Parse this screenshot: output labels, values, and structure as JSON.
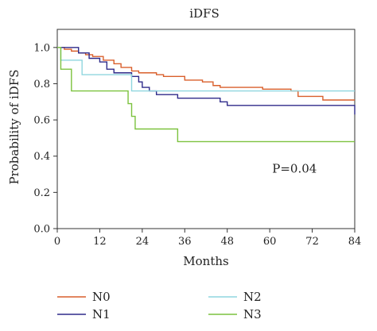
{
  "chart_data": {
    "type": "line",
    "step": true,
    "title": "iDFS",
    "xlabel": "Months",
    "ylabel": "Probability of iDFS",
    "xlim": [
      0,
      84
    ],
    "ylim": [
      0,
      1.1
    ],
    "x_ticks": [
      "0",
      "12",
      "24",
      "36",
      "48",
      "60",
      "72",
      "84"
    ],
    "y_ticks": [
      "0.0",
      "0.2",
      "0.4",
      "0.6",
      "0.8",
      "1.0"
    ],
    "grid": false,
    "legend_position": "bottom",
    "annotations": [
      {
        "text": "P=0.04",
        "x": 67,
        "y": 0.31
      }
    ],
    "series": [
      {
        "name": "N0",
        "color": "#d95f2b",
        "points": [
          [
            0,
            1.0
          ],
          [
            2,
            0.99
          ],
          [
            4,
            0.98
          ],
          [
            6,
            0.97
          ],
          [
            8,
            0.96
          ],
          [
            10,
            0.95
          ],
          [
            13,
            0.93
          ],
          [
            16,
            0.91
          ],
          [
            18,
            0.89
          ],
          [
            21,
            0.87
          ],
          [
            23,
            0.86
          ],
          [
            26,
            0.86
          ],
          [
            28,
            0.85
          ],
          [
            30,
            0.84
          ],
          [
            33,
            0.84
          ],
          [
            36,
            0.82
          ],
          [
            41,
            0.81
          ],
          [
            44,
            0.79
          ],
          [
            46,
            0.78
          ],
          [
            54,
            0.78
          ],
          [
            58,
            0.77
          ],
          [
            66,
            0.76
          ],
          [
            68,
            0.73
          ],
          [
            72,
            0.73
          ],
          [
            75,
            0.71
          ],
          [
            84,
            0.71
          ]
        ]
      },
      {
        "name": "N1",
        "color": "#2e2a8a",
        "points": [
          [
            0,
            1.0
          ],
          [
            6,
            0.97
          ],
          [
            9,
            0.94
          ],
          [
            12,
            0.92
          ],
          [
            14,
            0.88
          ],
          [
            16,
            0.86
          ],
          [
            19,
            0.86
          ],
          [
            21,
            0.84
          ],
          [
            23,
            0.81
          ],
          [
            24,
            0.78
          ],
          [
            26,
            0.76
          ],
          [
            28,
            0.74
          ],
          [
            34,
            0.72
          ],
          [
            40,
            0.72
          ],
          [
            46,
            0.7
          ],
          [
            48,
            0.68
          ],
          [
            70,
            0.68
          ],
          [
            83,
            0.68
          ],
          [
            84,
            0.63
          ]
        ]
      },
      {
        "name": "N2",
        "color": "#8fd6df",
        "points": [
          [
            0,
            1.0
          ],
          [
            1,
            0.93
          ],
          [
            6,
            0.93
          ],
          [
            7,
            0.85
          ],
          [
            20,
            0.85
          ],
          [
            21,
            0.76
          ],
          [
            84,
            0.76
          ]
        ]
      },
      {
        "name": "N3",
        "color": "#7cc23e",
        "points": [
          [
            0,
            1.0
          ],
          [
            1,
            0.88
          ],
          [
            3,
            0.88
          ],
          [
            4,
            0.76
          ],
          [
            19,
            0.76
          ],
          [
            20,
            0.69
          ],
          [
            21,
            0.62
          ],
          [
            22,
            0.55
          ],
          [
            33,
            0.55
          ],
          [
            34,
            0.48
          ],
          [
            84,
            0.48
          ]
        ]
      }
    ]
  }
}
